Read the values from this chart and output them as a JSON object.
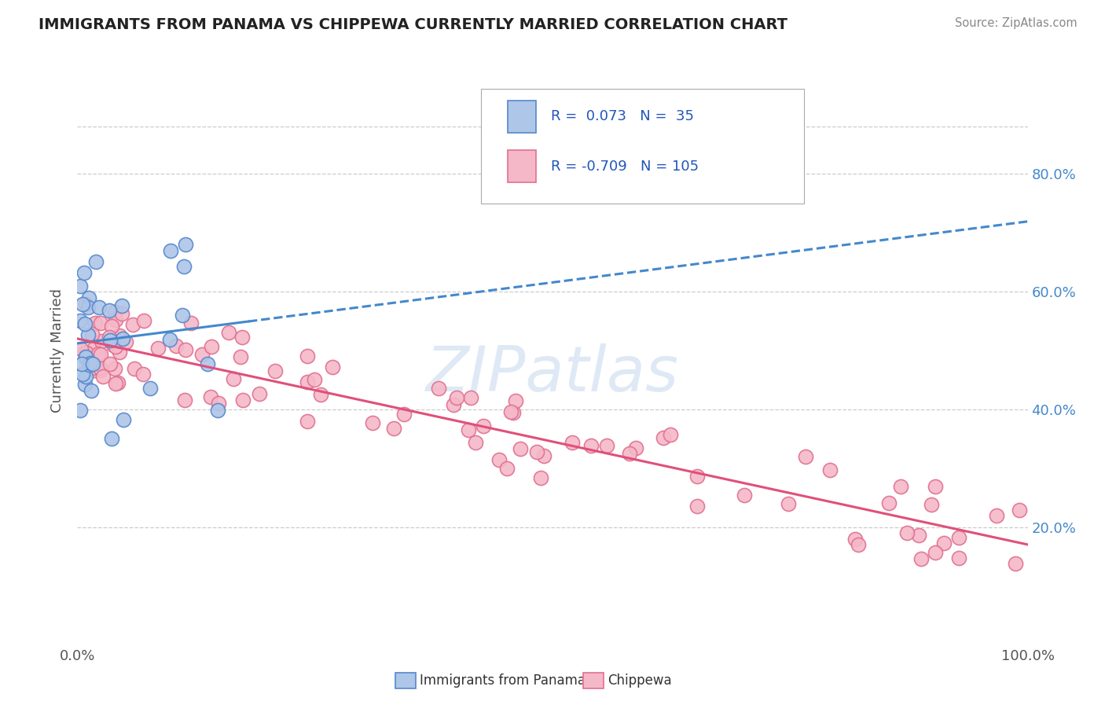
{
  "title": "IMMIGRANTS FROM PANAMA VS CHIPPEWA CURRENTLY MARRIED CORRELATION CHART",
  "source_text": "Source: ZipAtlas.com",
  "ylabel": "Currently Married",
  "ytick_positions": [
    0.2,
    0.4,
    0.6,
    0.8
  ],
  "ytick_labels": [
    "20.0%",
    "40.0%",
    "60.0%",
    "80.0%"
  ],
  "panama_color": "#aec6e8",
  "chippewa_color": "#f5b8c8",
  "panama_edge": "#5588cc",
  "chippewa_edge": "#e07090",
  "trend_panama_color": "#4488cc",
  "trend_chippewa_color": "#e0507a",
  "background_color": "#ffffff",
  "grid_color": "#cccccc",
  "watermark_color": "#c5d8ee",
  "title_color": "#222222",
  "source_color": "#888888",
  "right_tick_color": "#4488cc",
  "axis_label_color": "#555555",
  "legend_r_panama": "R =  0.073",
  "legend_n_panama": "N =  35",
  "legend_r_chippewa": "R = -0.709",
  "legend_n_chippewa": "N = 105"
}
